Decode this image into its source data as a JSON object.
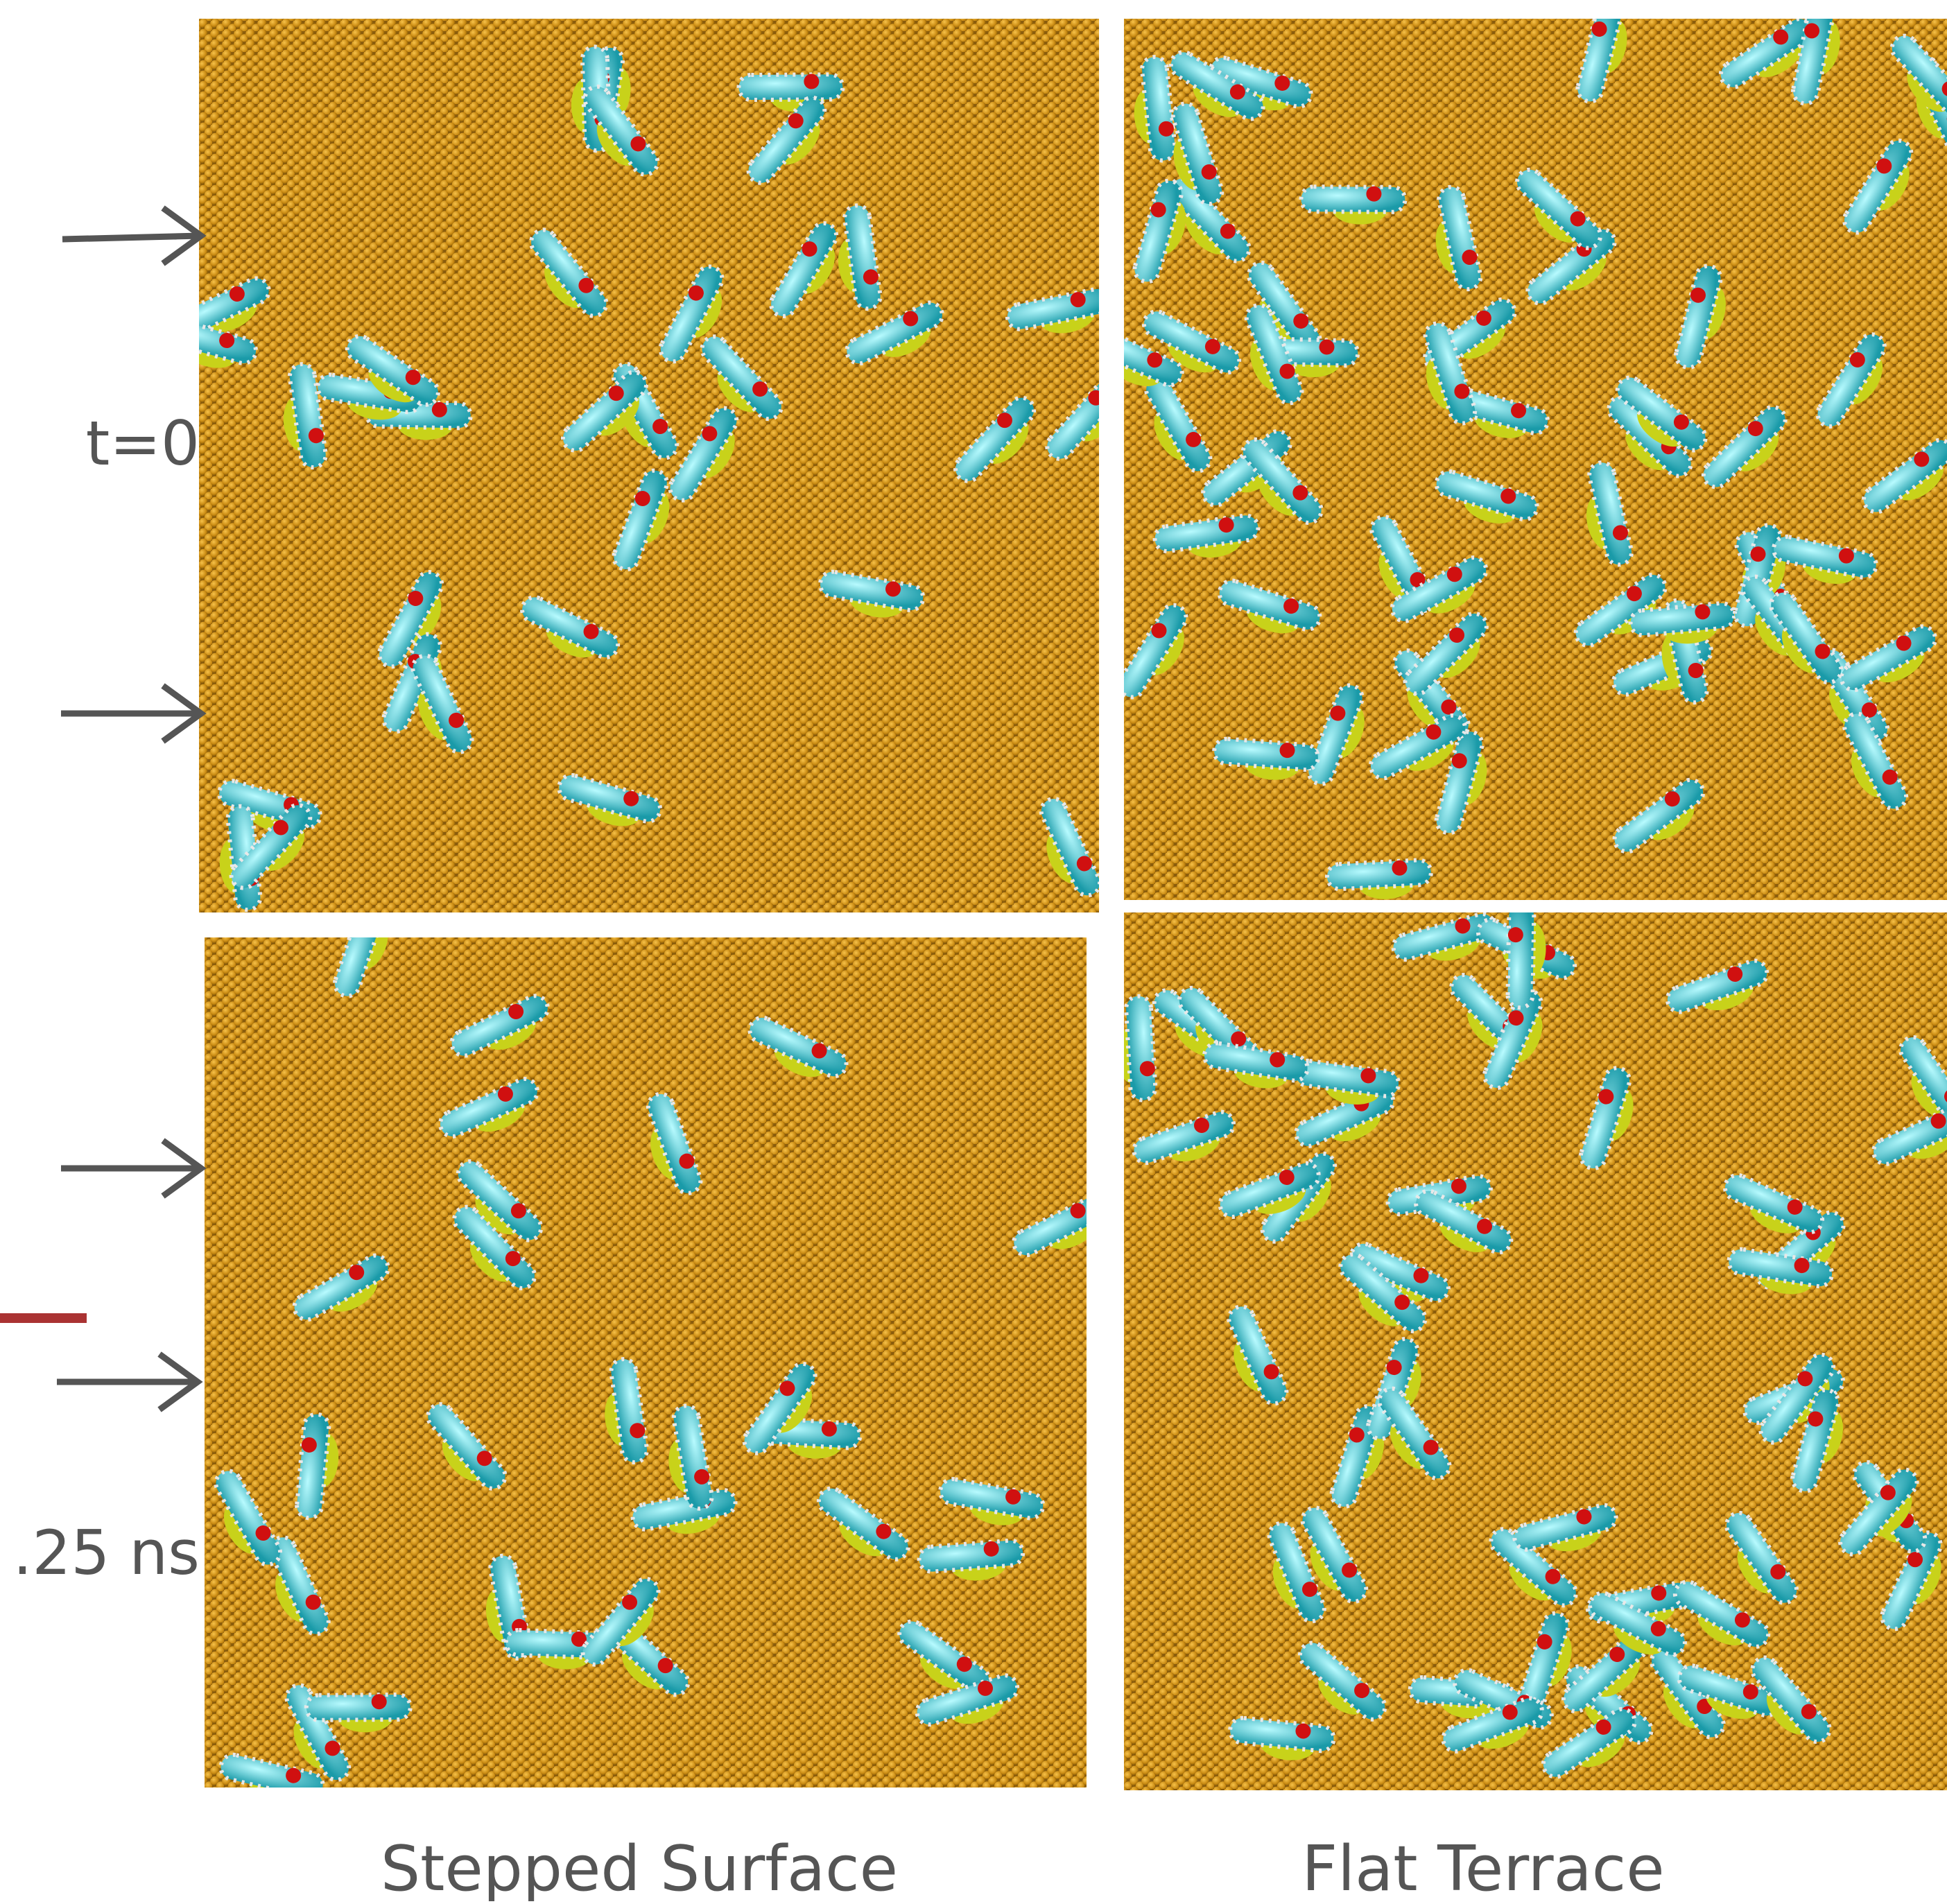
{
  "row_labels": {
    "top": "t=0",
    "bottom": ".25 ns"
  },
  "column_labels": {
    "left": "Stepped Surface",
    "right": "Flat Terrace"
  }
}
